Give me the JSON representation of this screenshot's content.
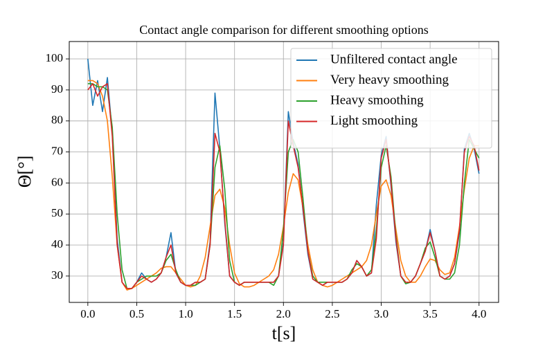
{
  "chart_data": {
    "type": "line",
    "title": "Contact angle comparison for different smoothing options",
    "x_label": "t[s]",
    "y_label": "Θ[°]",
    "x": [
      0,
      0.05,
      0.1,
      0.15,
      0.2,
      0.25,
      0.3,
      0.35,
      0.4,
      0.45,
      0.5,
      0.55,
      0.6,
      0.65,
      0.7,
      0.75,
      0.8,
      0.85,
      0.9,
      0.95,
      1.0,
      1.05,
      1.1,
      1.15,
      1.2,
      1.25,
      1.3,
      1.35,
      1.4,
      1.45,
      1.5,
      1.55,
      1.6,
      1.65,
      1.7,
      1.75,
      1.8,
      1.85,
      1.9,
      1.95,
      2.0,
      2.05,
      2.1,
      2.15,
      2.2,
      2.25,
      2.3,
      2.35,
      2.4,
      2.45,
      2.5,
      2.55,
      2.6,
      2.65,
      2.7,
      2.75,
      2.8,
      2.85,
      2.9,
      2.95,
      3.0,
      3.05,
      3.1,
      3.15,
      3.2,
      3.25,
      3.3,
      3.35,
      3.4,
      3.45,
      3.5,
      3.55,
      3.6,
      3.65,
      3.7,
      3.75,
      3.8,
      3.85,
      3.9,
      3.95,
      4.0
    ],
    "series": [
      {
        "name": "Unfiltered contact angle",
        "color": "#1f77b4",
        "values": [
          100,
          85,
          93,
          83,
          94,
          76,
          42,
          28,
          26,
          26,
          28,
          31,
          29,
          28,
          29,
          31,
          36,
          44,
          31,
          28,
          27,
          27,
          28,
          28,
          29,
          41,
          89,
          71,
          47,
          30,
          28,
          27,
          28,
          28,
          28,
          28,
          28,
          28,
          28,
          30,
          41,
          83,
          73,
          66,
          51,
          37,
          29,
          28,
          27,
          28,
          28,
          28,
          28,
          29,
          31,
          35,
          33,
          30,
          31,
          53,
          69,
          75,
          59,
          41,
          30,
          28,
          28,
          30,
          34,
          38,
          45,
          38,
          30,
          29,
          30,
          34,
          44,
          71,
          76,
          71,
          63
        ]
      },
      {
        "name": "Very heavy smoothing",
        "color": "#ff7f0e",
        "values": [
          93,
          93,
          92,
          88,
          80,
          62,
          40,
          28,
          25.5,
          26,
          27,
          28,
          29,
          30,
          31,
          32.5,
          33,
          33,
          31,
          29,
          27,
          26.5,
          27,
          30,
          36,
          46,
          56,
          58,
          52,
          40,
          31,
          27.5,
          26.5,
          26.5,
          27,
          28,
          29,
          30,
          32,
          37,
          46,
          57,
          63,
          61,
          52,
          40,
          32,
          28,
          27,
          26.5,
          27,
          28,
          29,
          30,
          31,
          32,
          33,
          35,
          40,
          50,
          59,
          61,
          56,
          45,
          35,
          30,
          28,
          28,
          30,
          33,
          35.5,
          35,
          32,
          30.5,
          31,
          36,
          46,
          58,
          68,
          72,
          72
        ]
      },
      {
        "name": "Heavy smoothing",
        "color": "#2ca02c",
        "values": [
          92,
          92,
          91,
          91,
          90,
          78,
          50,
          32,
          26,
          26,
          28,
          29,
          30,
          30,
          30,
          31,
          35,
          37,
          32,
          28,
          27,
          27,
          27,
          28,
          29,
          40,
          65,
          72,
          58,
          35,
          28,
          27,
          28,
          28,
          28,
          28,
          28,
          28,
          27,
          30,
          45,
          70,
          74,
          70,
          55,
          38,
          30,
          28,
          28,
          28,
          28,
          28,
          28,
          29,
          32,
          34,
          33,
          30,
          32,
          45,
          65,
          72,
          62,
          43,
          30,
          27.5,
          28,
          30,
          34,
          39,
          41,
          36,
          30,
          29,
          29,
          31,
          40,
          60,
          74,
          71,
          68
        ]
      },
      {
        "name": "Light smoothing",
        "color": "#d62728",
        "values": [
          90,
          92,
          88,
          91,
          92,
          75,
          40,
          28,
          26,
          26,
          28,
          30,
          29,
          28,
          29,
          31,
          36,
          40,
          31,
          28,
          27,
          27,
          28,
          28,
          29,
          40,
          76,
          70,
          48,
          30,
          28,
          27,
          28,
          28,
          28,
          28,
          28,
          28,
          28,
          30,
          40,
          80,
          72,
          65,
          52,
          38,
          29,
          28,
          27,
          28,
          28,
          28,
          28,
          29,
          31,
          35,
          33,
          30,
          31,
          42,
          68,
          74,
          60,
          42,
          30,
          28,
          28,
          30,
          34,
          38,
          44,
          38,
          30,
          29,
          30,
          34,
          45,
          70,
          75,
          72,
          64
        ]
      }
    ],
    "xlim": [
      -0.19,
      4.2
    ],
    "ylim": [
      21.5,
      105.6
    ],
    "xticks": [
      {
        "value": 0,
        "label": "0.0"
      },
      0.5,
      {
        "value": 1,
        "label": "1.0"
      },
      1.5,
      {
        "value": 2,
        "label": "2.0"
      },
      2.5,
      {
        "value": 3,
        "label": "3.0"
      },
      3.5,
      {
        "value": 4,
        "label": "4.0"
      }
    ],
    "yticks": [
      30,
      40,
      50,
      60,
      70,
      80,
      90,
      100
    ],
    "grid": true,
    "legend": "upper right"
  }
}
